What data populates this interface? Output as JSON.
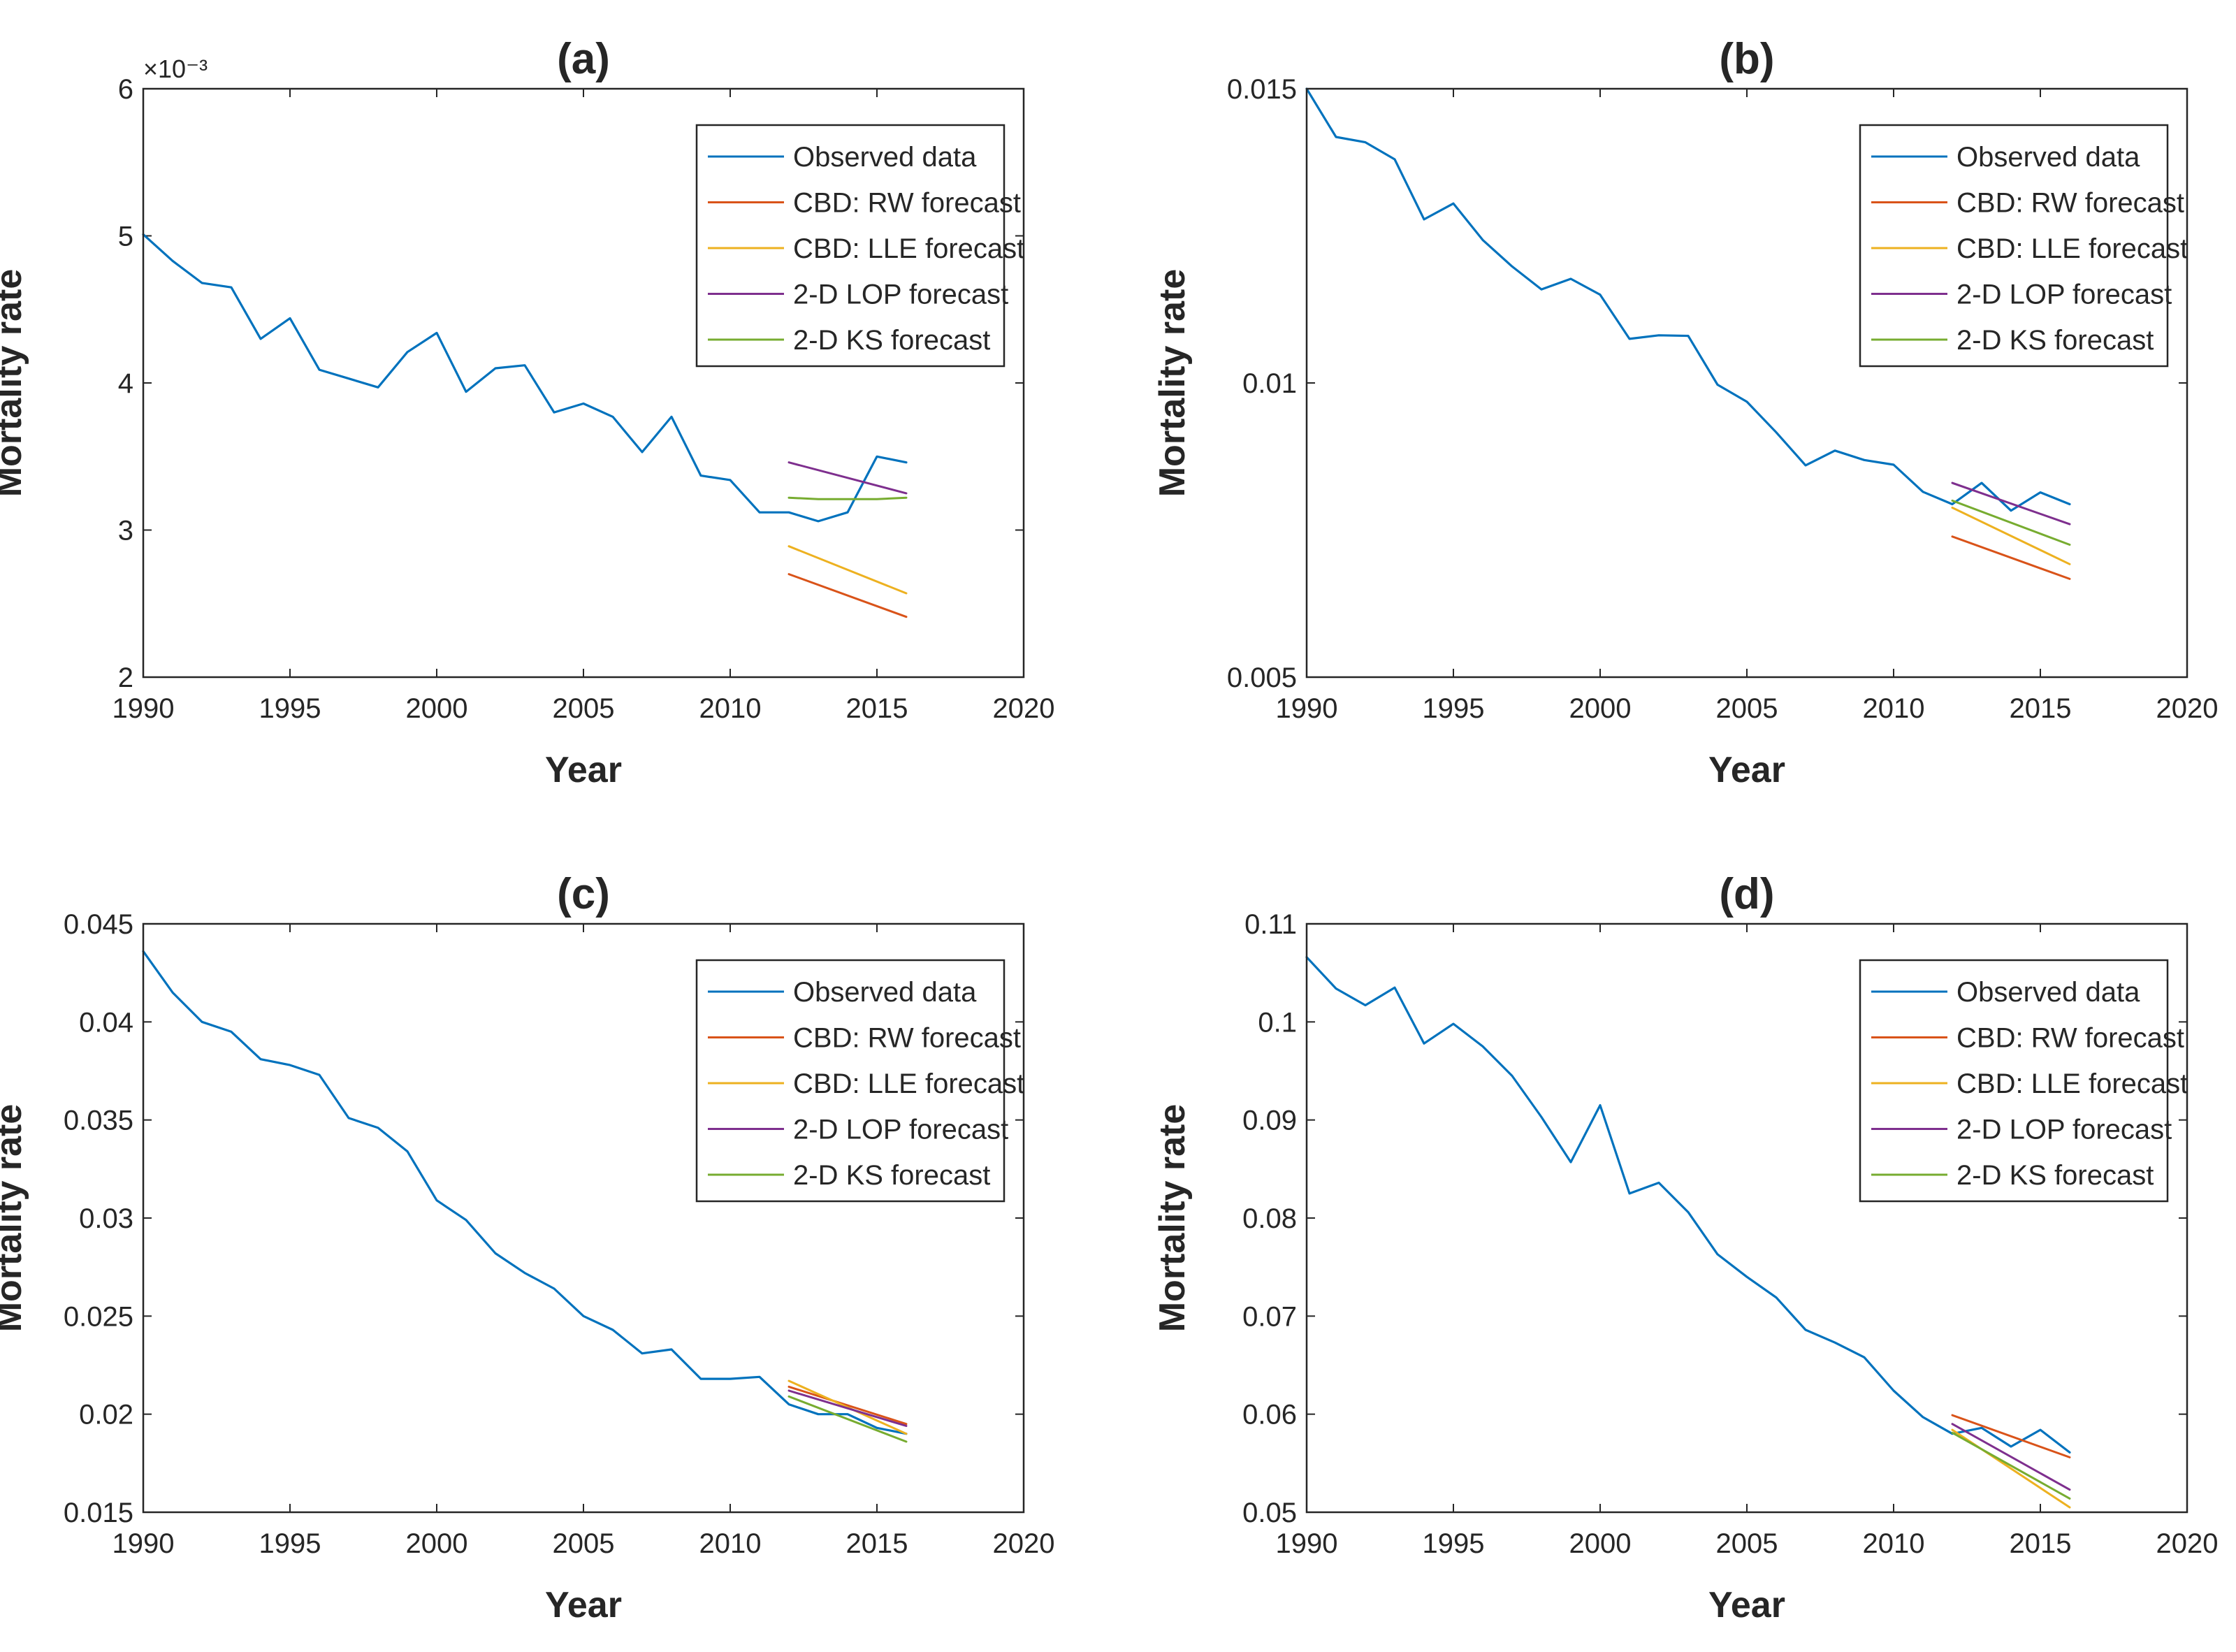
{
  "colors": {
    "observed": "#0072BD",
    "rw": "#D95319",
    "lle": "#EDB120",
    "lop": "#7E2F8E",
    "ks": "#77AC30",
    "axis": "#262626"
  },
  "chart_data": [
    {
      "type": "line",
      "title": "(a)",
      "xlabel": "Year",
      "ylabel": "Mortality rate",
      "xlim": [
        1990,
        2020
      ],
      "ylim": [
        0.002,
        0.006
      ],
      "exponent_label": "×10⁻³",
      "x_ticks": [
        1990,
        1995,
        2000,
        2005,
        2010,
        2015,
        2020
      ],
      "x_tick_labels": [
        "1990",
        "1995",
        "2000",
        "2005",
        "2010",
        "2015",
        "2020"
      ],
      "y_ticks": [
        0.002,
        0.003,
        0.004,
        0.005,
        0.006
      ],
      "y_tick_labels": [
        "2",
        "3",
        "4",
        "5",
        "6"
      ],
      "legend": [
        "Observed data",
        "CBD: RW forecast",
        "CBD: LLE forecast",
        "2-D LOP forecast",
        "2-D KS forecast"
      ],
      "legend_position": "top-right",
      "series": [
        {
          "name": "Observed data",
          "color_key": "observed",
          "x": [
            1990,
            1991,
            1992,
            1993,
            1994,
            1995,
            1996,
            1997,
            1998,
            1999,
            2000,
            2001,
            2002,
            2003,
            2004,
            2005,
            2006,
            2007,
            2008,
            2009,
            2010,
            2011,
            2012,
            2013,
            2014,
            2015,
            2016
          ],
          "values": [
            0.00501,
            0.00483,
            0.00468,
            0.00465,
            0.0043,
            0.00444,
            0.00409,
            0.00403,
            0.00397,
            0.00421,
            0.00434,
            0.00394,
            0.0041,
            0.00412,
            0.0038,
            0.00386,
            0.00377,
            0.00353,
            0.00377,
            0.00337,
            0.00334,
            0.00312,
            0.00312,
            0.00306,
            0.00312,
            0.0035,
            0.00346
          ]
        },
        {
          "name": "CBD: RW forecast",
          "color_key": "rw",
          "x": [
            2012,
            2016
          ],
          "values": [
            0.0027,
            0.00241
          ]
        },
        {
          "name": "CBD: LLE forecast",
          "color_key": "lle",
          "x": [
            2012,
            2016
          ],
          "values": [
            0.00289,
            0.00257
          ]
        },
        {
          "name": "2-D LOP forecast",
          "color_key": "lop",
          "x": [
            2012,
            2016
          ],
          "values": [
            0.00346,
            0.00325
          ]
        },
        {
          "name": "2-D KS forecast",
          "color_key": "ks",
          "x": [
            2012,
            2013,
            2014,
            2015,
            2016
          ],
          "values": [
            0.00322,
            0.00321,
            0.00321,
            0.00321,
            0.00322
          ]
        }
      ]
    },
    {
      "type": "line",
      "title": "(b)",
      "xlabel": "Year",
      "ylabel": "Mortality rate",
      "xlim": [
        1990,
        2020
      ],
      "ylim": [
        0.005,
        0.015
      ],
      "x_ticks": [
        1990,
        1995,
        2000,
        2005,
        2010,
        2015,
        2020
      ],
      "x_tick_labels": [
        "1990",
        "1995",
        "2000",
        "2005",
        "2010",
        "2015",
        "2020"
      ],
      "y_ticks": [
        0.005,
        0.01,
        0.015
      ],
      "y_tick_labels": [
        "0.005",
        "0.01",
        "0.015"
      ],
      "legend": [
        "Observed data",
        "CBD: RW forecast",
        "CBD: LLE forecast",
        "2-D LOP forecast",
        "2-D KS forecast"
      ],
      "legend_position": "top-right",
      "series": [
        {
          "name": "Observed data",
          "color_key": "observed",
          "x": [
            1990,
            1991,
            1992,
            1993,
            1994,
            1995,
            1996,
            1997,
            1998,
            1999,
            2000,
            2001,
            2002,
            2003,
            2004,
            2005,
            2006,
            2007,
            2008,
            2009,
            2010,
            2011,
            2012,
            2013,
            2014,
            2015,
            2016
          ],
          "values": [
            0.015,
            0.01418,
            0.01409,
            0.0138,
            0.01278,
            0.01305,
            0.01243,
            0.01198,
            0.01159,
            0.01177,
            0.0115,
            0.01075,
            0.01081,
            0.0108,
            0.00997,
            0.00968,
            0.00916,
            0.0086,
            0.00885,
            0.00869,
            0.00861,
            0.00815,
            0.00794,
            0.0083,
            0.00783,
            0.00814,
            0.00794
          ]
        },
        {
          "name": "CBD: RW forecast",
          "color_key": "rw",
          "x": [
            2012,
            2016
          ],
          "values": [
            0.00739,
            0.00667
          ]
        },
        {
          "name": "CBD: LLE forecast",
          "color_key": "lle",
          "x": [
            2012,
            2016
          ],
          "values": [
            0.00788,
            0.00692
          ]
        },
        {
          "name": "2-D LOP forecast",
          "color_key": "lop",
          "x": [
            2012,
            2016
          ],
          "values": [
            0.0083,
            0.0076
          ]
        },
        {
          "name": "2-D KS forecast",
          "color_key": "ks",
          "x": [
            2012,
            2016
          ],
          "values": [
            0.008,
            0.00725
          ]
        }
      ]
    },
    {
      "type": "line",
      "title": "(c)",
      "xlabel": "Year",
      "ylabel": "Mortality rate",
      "xlim": [
        1990,
        2020
      ],
      "ylim": [
        0.015,
        0.045
      ],
      "x_ticks": [
        1990,
        1995,
        2000,
        2005,
        2010,
        2015,
        2020
      ],
      "x_tick_labels": [
        "1990",
        "1995",
        "2000",
        "2005",
        "2010",
        "2015",
        "2020"
      ],
      "y_ticks": [
        0.015,
        0.02,
        0.025,
        0.03,
        0.035,
        0.04,
        0.045
      ],
      "y_tick_labels": [
        "0.015",
        "0.02",
        "0.025",
        "0.03",
        "0.035",
        "0.04",
        "0.045"
      ],
      "legend": [
        "Observed data",
        "CBD: RW forecast",
        "CBD: LLE forecast",
        "2-D LOP forecast",
        "2-D KS forecast"
      ],
      "legend_position": "top-right",
      "series": [
        {
          "name": "Observed data",
          "color_key": "observed",
          "x": [
            1990,
            1991,
            1992,
            1993,
            1994,
            1995,
            1996,
            1997,
            1998,
            1999,
            2000,
            2001,
            2002,
            2003,
            2004,
            2005,
            2006,
            2007,
            2008,
            2009,
            2010,
            2011,
            2012,
            2013,
            2014,
            2015,
            2016
          ],
          "values": [
            0.0436,
            0.0415,
            0.04,
            0.0395,
            0.0381,
            0.0378,
            0.0373,
            0.0351,
            0.0346,
            0.0334,
            0.0309,
            0.0299,
            0.0282,
            0.0272,
            0.0264,
            0.025,
            0.0243,
            0.0231,
            0.0233,
            0.0218,
            0.0218,
            0.0219,
            0.0205,
            0.02,
            0.02,
            0.0193,
            0.019
          ]
        },
        {
          "name": "CBD: RW forecast",
          "color_key": "rw",
          "x": [
            2012,
            2016
          ],
          "values": [
            0.0214,
            0.0195
          ]
        },
        {
          "name": "CBD: LLE forecast",
          "color_key": "lle",
          "x": [
            2012,
            2016
          ],
          "values": [
            0.0217,
            0.019
          ]
        },
        {
          "name": "2-D LOP forecast",
          "color_key": "lop",
          "x": [
            2012,
            2016
          ],
          "values": [
            0.0212,
            0.0194
          ]
        },
        {
          "name": "2-D KS forecast",
          "color_key": "ks",
          "x": [
            2012,
            2016
          ],
          "values": [
            0.0209,
            0.0186
          ]
        }
      ]
    },
    {
      "type": "line",
      "title": "(d)",
      "xlabel": "Year",
      "ylabel": "Mortality rate",
      "xlim": [
        1990,
        2020
      ],
      "ylim": [
        0.05,
        0.11
      ],
      "x_ticks": [
        1990,
        1995,
        2000,
        2005,
        2010,
        2015,
        2020
      ],
      "x_tick_labels": [
        "1990",
        "1995",
        "2000",
        "2005",
        "2010",
        "2015",
        "2020"
      ],
      "y_ticks": [
        0.05,
        0.06,
        0.07,
        0.08,
        0.09,
        0.1,
        0.11
      ],
      "y_tick_labels": [
        "0.05",
        "0.06",
        "0.07",
        "0.08",
        "0.09",
        "0.1",
        "0.11"
      ],
      "legend": [
        "Observed data",
        "CBD: RW forecast",
        "CBD: LLE forecast",
        "2-D LOP forecast",
        "2-D KS forecast"
      ],
      "legend_position": "top-right",
      "series": [
        {
          "name": "Observed data",
          "color_key": "observed",
          "x": [
            1990,
            1991,
            1992,
            1993,
            1994,
            1995,
            1996,
            1997,
            1998,
            1999,
            2000,
            2001,
            2002,
            2003,
            2004,
            2005,
            2006,
            2007,
            2008,
            2009,
            2010,
            2011,
            2012,
            2013,
            2014,
            2015,
            2016
          ],
          "values": [
            0.1066,
            0.1034,
            0.1017,
            0.1035,
            0.0978,
            0.0998,
            0.0975,
            0.0945,
            0.0903,
            0.0857,
            0.0915,
            0.0825,
            0.0836,
            0.0806,
            0.0763,
            0.074,
            0.0719,
            0.0686,
            0.0673,
            0.0658,
            0.0624,
            0.0597,
            0.058,
            0.0586,
            0.0567,
            0.0584,
            0.0561
          ]
        },
        {
          "name": "CBD: RW forecast",
          "color_key": "rw",
          "x": [
            2012,
            2016
          ],
          "values": [
            0.0599,
            0.0556
          ]
        },
        {
          "name": "CBD: LLE forecast",
          "color_key": "lle",
          "x": [
            2012,
            2016
          ],
          "values": [
            0.0584,
            0.0505
          ]
        },
        {
          "name": "2-D LOP forecast",
          "color_key": "lop",
          "x": [
            2012,
            2016
          ],
          "values": [
            0.059,
            0.0523
          ]
        },
        {
          "name": "2-D KS forecast",
          "color_key": "ks",
          "x": [
            2012,
            2016
          ],
          "values": [
            0.0581,
            0.0514
          ]
        }
      ]
    }
  ]
}
